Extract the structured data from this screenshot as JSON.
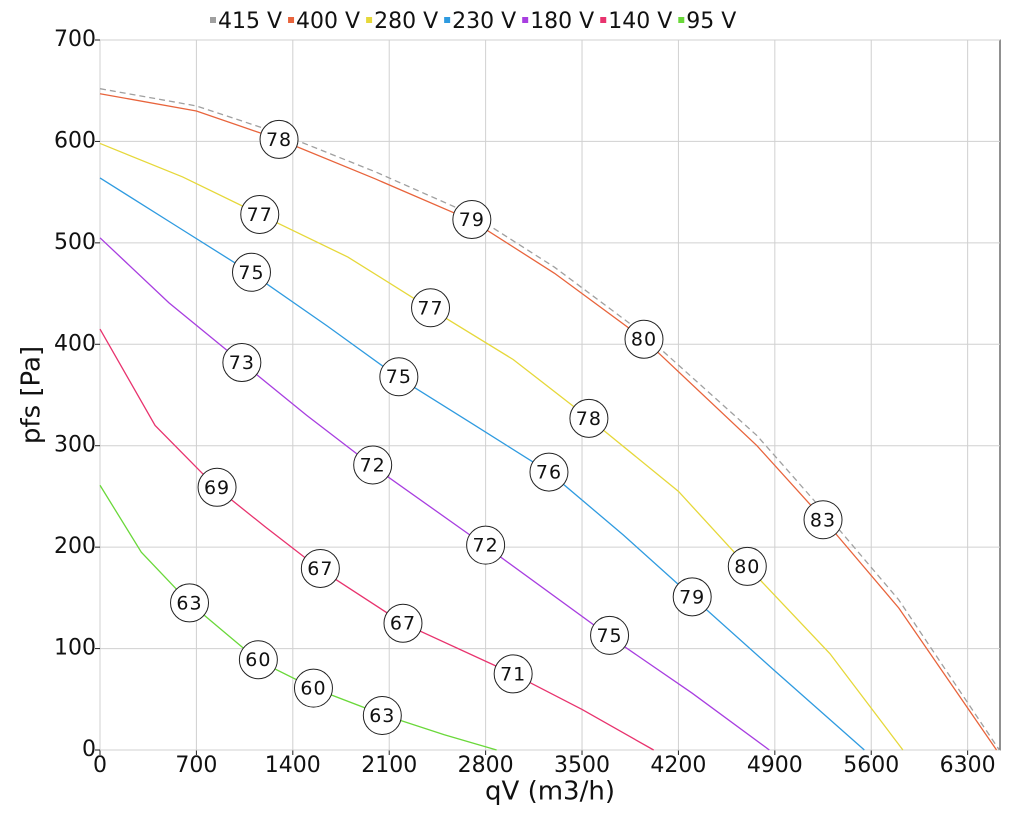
{
  "chart_data": {
    "type": "line",
    "x_label": "qV (m3/h)",
    "y_label": "pfs [Pa]",
    "xlim": [
      0,
      6535
    ],
    "ylim": [
      0,
      700
    ],
    "xticks": [
      0,
      700,
      1400,
      2100,
      2800,
      3500,
      4200,
      4900,
      5600,
      6300
    ],
    "yticks": [
      0,
      100,
      200,
      300,
      400,
      500,
      600,
      700
    ],
    "grid": true,
    "legend": "top",
    "series": [
      {
        "name": "415 V",
        "color": "#a0a0a0",
        "dashed": true,
        "x": [
          0,
          700,
          1300,
          2000,
          2700,
          3300,
          3950,
          4770,
          5250,
          5800,
          6530
        ],
        "values": [
          652,
          635,
          608,
          570,
          528,
          476,
          410,
          310,
          236,
          148,
          0
        ],
        "annotations": []
      },
      {
        "name": "400 V",
        "color": "#e8643c",
        "x": [
          0,
          700,
          1300,
          2000,
          2700,
          3300,
          3950,
          4770,
          5250,
          5800,
          6510
        ],
        "values": [
          647,
          630,
          602,
          563,
          522,
          470,
          405,
          300,
          228,
          140,
          0
        ],
        "annotations": [
          {
            "x": 1300,
            "y": 602,
            "label": 78
          },
          {
            "x": 2700,
            "y": 523,
            "label": 79
          },
          {
            "x": 3950,
            "y": 405,
            "label": 80
          },
          {
            "x": 5250,
            "y": 227,
            "label": 83
          }
        ]
      },
      {
        "name": "280 V",
        "color": "#e6d83a",
        "x": [
          0,
          600,
          1160,
          1800,
          2400,
          3000,
          3550,
          4200,
          4700,
          5300,
          5830
        ],
        "values": [
          598,
          565,
          528,
          486,
          435,
          385,
          327,
          255,
          181,
          95,
          0
        ],
        "annotations": [
          {
            "x": 1160,
            "y": 528,
            "label": 77
          },
          {
            "x": 2400,
            "y": 436,
            "label": 77
          },
          {
            "x": 3550,
            "y": 327,
            "label": 78
          },
          {
            "x": 4700,
            "y": 181,
            "label": 80
          }
        ]
      },
      {
        "name": "230 V",
        "color": "#2f9be0",
        "x": [
          0,
          550,
          1100,
          1650,
          2170,
          2700,
          3260,
          3800,
          4300,
          4900,
          5550
        ],
        "values": [
          564,
          517,
          470,
          418,
          367,
          322,
          274,
          212,
          151,
          78,
          0
        ],
        "annotations": [
          {
            "x": 1100,
            "y": 471,
            "label": 75
          },
          {
            "x": 2170,
            "y": 368,
            "label": 75
          },
          {
            "x": 3260,
            "y": 274,
            "label": 76
          },
          {
            "x": 4300,
            "y": 151,
            "label": 79
          }
        ]
      },
      {
        "name": "180 V",
        "color": "#a83ee0",
        "x": [
          0,
          500,
          1030,
          1500,
          1980,
          2800,
          3700,
          4300,
          4860
        ],
        "values": [
          505,
          441,
          382,
          330,
          280,
          201,
          112,
          56,
          0
        ],
        "annotations": [
          {
            "x": 1030,
            "y": 382,
            "label": 73
          },
          {
            "x": 1980,
            "y": 281,
            "label": 72
          },
          {
            "x": 2800,
            "y": 202,
            "label": 72
          },
          {
            "x": 3700,
            "y": 113,
            "label": 75
          }
        ]
      },
      {
        "name": "140 V",
        "color": "#e8336e",
        "x": [
          0,
          400,
          850,
          1200,
          1600,
          2200,
          3000,
          3500,
          4020
        ],
        "values": [
          415,
          320,
          258,
          220,
          178,
          125,
          75,
          40,
          0
        ],
        "annotations": [
          {
            "x": 850,
            "y": 259,
            "label": 69
          },
          {
            "x": 1600,
            "y": 179,
            "label": 67
          },
          {
            "x": 2200,
            "y": 125,
            "label": 67
          },
          {
            "x": 3000,
            "y": 75,
            "label": 71
          }
        ]
      },
      {
        "name": "95 V",
        "color": "#6ad83a",
        "x": [
          0,
          300,
          650,
          1150,
          1550,
          2050,
          2500,
          2880
        ],
        "values": [
          261,
          195,
          145,
          88,
          61,
          35,
          15,
          0
        ],
        "annotations": [
          {
            "x": 650,
            "y": 145,
            "label": 63
          },
          {
            "x": 1150,
            "y": 89,
            "label": 60
          },
          {
            "x": 1550,
            "y": 61,
            "label": 60
          },
          {
            "x": 2050,
            "y": 34,
            "label": 63
          }
        ]
      }
    ]
  }
}
